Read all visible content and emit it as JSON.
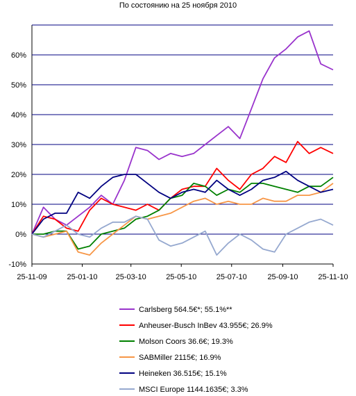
{
  "chart_data": {
    "type": "line",
    "title": "По состоянию на 25 ноября 2010",
    "xlabel": "",
    "ylabel": "",
    "x_tick_labels": [
      "25-11-09",
      "25-01-10",
      "25-03-10",
      "25-05-10",
      "25-07-10",
      "25-09-10",
      "25-11-10"
    ],
    "y_tick_labels": [
      "-10%",
      "0%",
      "10%",
      "20%",
      "30%",
      "40%",
      "50%",
      "60%"
    ],
    "ylim": [
      -10,
      70
    ],
    "grid": "horizontal",
    "legend_position": "bottom-center",
    "x_dates": [
      "2009-11-25",
      "2009-12-09",
      "2009-12-23",
      "2010-01-06",
      "2010-01-20",
      "2010-02-03",
      "2010-02-17",
      "2010-03-03",
      "2010-03-17",
      "2010-03-31",
      "2010-04-14",
      "2010-04-28",
      "2010-05-12",
      "2010-05-26",
      "2010-06-09",
      "2010-06-23",
      "2010-07-07",
      "2010-07-21",
      "2010-08-04",
      "2010-08-18",
      "2010-09-01",
      "2010-09-15",
      "2010-09-29",
      "2010-10-13",
      "2010-10-27",
      "2010-11-10",
      "2010-11-25"
    ],
    "series": [
      {
        "name": "Carlsberg  564.5€*; 55.1%**",
        "color": "#9933CC",
        "values": [
          0,
          9,
          5,
          3,
          6,
          9,
          13,
          10,
          18,
          29,
          28,
          25,
          27,
          26,
          27,
          30,
          33,
          36,
          32,
          42,
          52,
          59,
          62,
          66,
          68,
          57,
          55
        ]
      },
      {
        "name": "Anheuser-Busch InBev  43.955€; 26.9%",
        "color": "#FF0000",
        "values": [
          0,
          6,
          5,
          2,
          1,
          8,
          12,
          10,
          9,
          8,
          10,
          8,
          12,
          15,
          16,
          16,
          22,
          18,
          15,
          20,
          22,
          26,
          24,
          31,
          27,
          29,
          27
        ]
      },
      {
        "name": "Molson Coors  36.6€; 19.3%",
        "color": "#008000",
        "values": [
          0,
          0,
          1,
          1,
          -5,
          -4,
          0,
          1,
          2,
          5,
          6,
          8,
          12,
          13,
          17,
          16,
          13,
          15,
          14,
          17,
          17,
          16,
          15,
          14,
          16,
          16,
          19
        ]
      },
      {
        "name": "SABMiller  2115€; 16.9%",
        "color": "#F79646",
        "values": [
          0,
          -1,
          0,
          1,
          -6,
          -7,
          -3,
          0,
          3,
          6,
          5,
          6,
          7,
          9,
          11,
          12,
          10,
          11,
          10,
          10,
          12,
          11,
          11,
          13,
          13,
          14,
          17
        ]
      },
      {
        "name": "Heineken  36.515€; 15.1%",
        "color": "#000080",
        "values": [
          0,
          5,
          7,
          7,
          14,
          12,
          16,
          19,
          20,
          20,
          17,
          14,
          12,
          14,
          15,
          14,
          18,
          15,
          13,
          15,
          18,
          19,
          21,
          18,
          16,
          14,
          15
        ]
      },
      {
        "name": "MSCI Europe  1144.1635€; 3.3%",
        "color": "#95A8CF",
        "values": [
          0,
          -1,
          1,
          3,
          0,
          -1,
          2,
          4,
          4,
          6,
          5,
          -2,
          -4,
          -3,
          -1,
          1,
          -7,
          -3,
          0,
          -2,
          -5,
          -6,
          0,
          2,
          4,
          5,
          3
        ]
      }
    ]
  }
}
